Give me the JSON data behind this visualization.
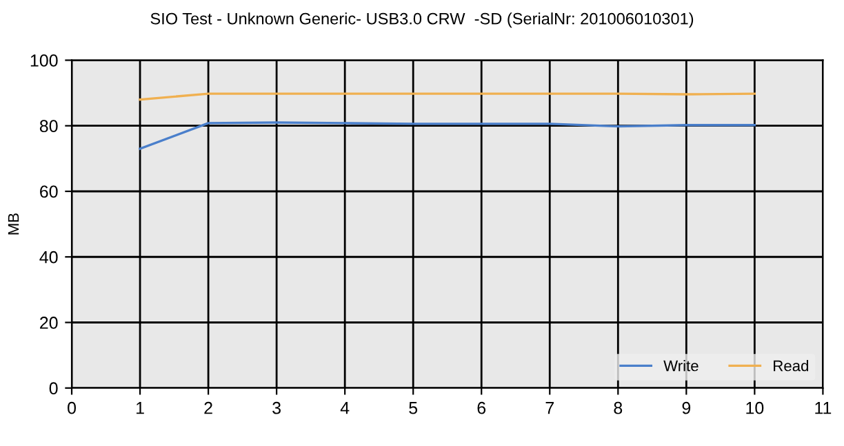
{
  "chart_data": {
    "type": "line",
    "title": "SIO Test - Unknown Generic- USB3.0 CRW  -SD (SerialNr: 201006010301)",
    "ylabel": "MB",
    "x": [
      1,
      2,
      3,
      4,
      5,
      6,
      7,
      8,
      9,
      10
    ],
    "series": [
      {
        "name": "Write",
        "color": "#4a7fcb",
        "values": [
          73,
          80.8,
          81,
          80.8,
          80.6,
          80.6,
          80.6,
          79.8,
          80.2,
          80.2
        ]
      },
      {
        "name": "Read",
        "color": "#f0b050",
        "values": [
          88,
          89.8,
          89.8,
          89.8,
          89.8,
          89.8,
          89.8,
          89.8,
          89.6,
          89.8
        ]
      }
    ],
    "xlim": [
      0,
      11
    ],
    "xticks": [
      0,
      1,
      2,
      3,
      4,
      5,
      6,
      7,
      8,
      9,
      10,
      11
    ],
    "ylim": [
      0,
      100
    ],
    "yticks": [
      0,
      20,
      40,
      60,
      80,
      100
    ],
    "grid": true,
    "legend": "bottom right",
    "marker": "none",
    "line_style": "solid"
  }
}
